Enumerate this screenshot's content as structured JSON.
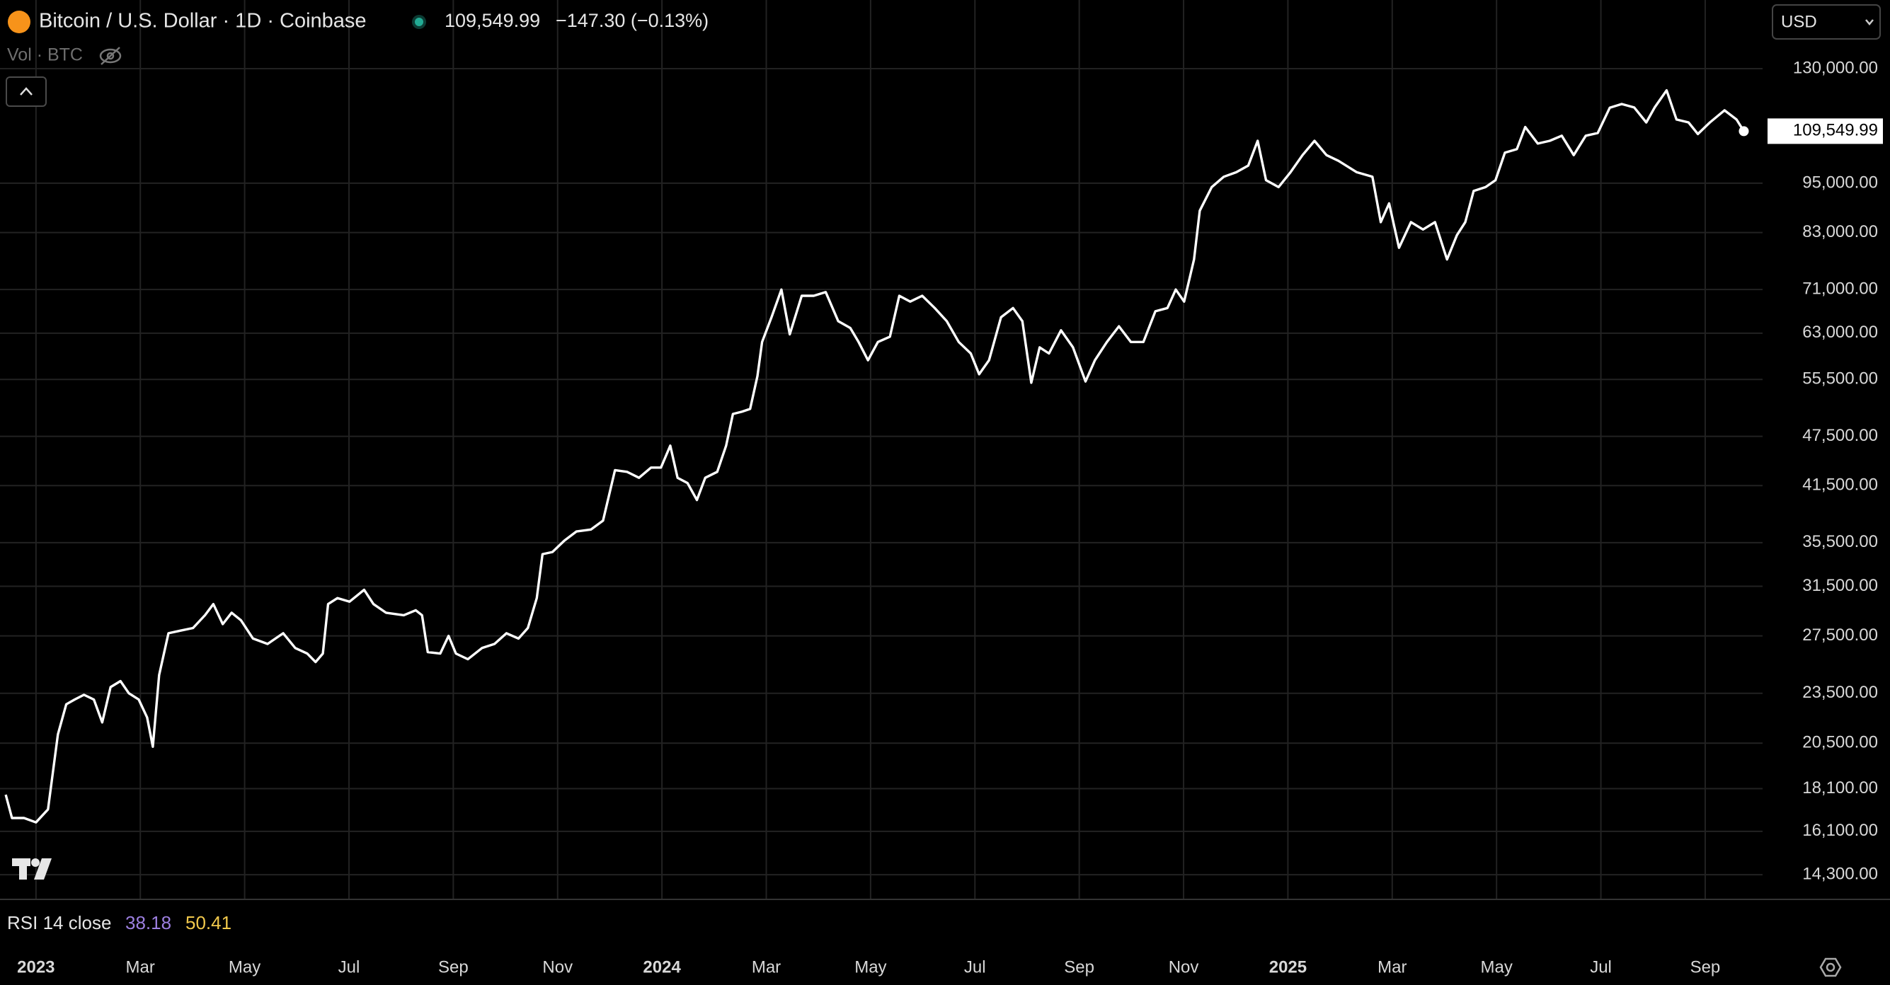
{
  "header": {
    "symbol": "Bitcoin / U.S. Dollar · 1D · Coinbase",
    "price": "109,549.99",
    "change": "−147.30 (−0.13%)",
    "volume": "Vol · BTC",
    "currency": "USD"
  },
  "rsi": {
    "label": "RSI 14 close",
    "values": [
      "38.18",
      "50.41"
    ]
  },
  "chart_data": {
    "type": "line",
    "log_scale": true,
    "grid": true,
    "xlim": [
      -0.69,
      33.1
    ],
    "xticks": [
      {
        "value": 0,
        "label": "2023"
      },
      {
        "value": 2,
        "label": "Mar"
      },
      {
        "value": 4,
        "label": "May"
      },
      {
        "value": 6,
        "label": "Jul"
      },
      {
        "value": 8,
        "label": "Sep"
      },
      {
        "value": 10,
        "label": "Nov"
      },
      {
        "value": 12,
        "label": "2024"
      },
      {
        "value": 14,
        "label": "Mar"
      },
      {
        "value": 16,
        "label": "May"
      },
      {
        "value": 18,
        "label": "Jul"
      },
      {
        "value": 20,
        "label": "Sep"
      },
      {
        "value": 22,
        "label": "Nov"
      },
      {
        "value": 24,
        "label": "2025"
      },
      {
        "value": 26,
        "label": "Mar"
      },
      {
        "value": 28,
        "label": "May"
      },
      {
        "value": 30,
        "label": "Jul"
      },
      {
        "value": 32,
        "label": "Sep"
      }
    ],
    "ylim": [
      13390,
      156900
    ],
    "yticks": [
      {
        "value": 130000,
        "label": "130,000.00"
      },
      {
        "value": 95000,
        "label": "95,000.00"
      },
      {
        "value": 83000,
        "label": "83,000.00"
      },
      {
        "value": 71000,
        "label": "71,000.00"
      },
      {
        "value": 63000,
        "label": "63,000.00"
      },
      {
        "value": 55500,
        "label": "55,500.00"
      },
      {
        "value": 47500,
        "label": "47,500.00"
      },
      {
        "value": 41500,
        "label": "41,500.00"
      },
      {
        "value": 35500,
        "label": "35,500.00"
      },
      {
        "value": 31500,
        "label": "31,500.00"
      },
      {
        "value": 27500,
        "label": "27,500.00"
      },
      {
        "value": 23500,
        "label": "23,500.00"
      },
      {
        "value": 20500,
        "label": "20,500.00"
      },
      {
        "value": 18100,
        "label": "18,100.00"
      },
      {
        "value": 16100,
        "label": "16,100.00"
      },
      {
        "value": 14300,
        "label": "14,300.00"
      }
    ],
    "x": [
      -0.58,
      -0.46,
      -0.23,
      0,
      0.23,
      0.42,
      0.58,
      0.74,
      0.92,
      1.11,
      1.27,
      1.43,
      1.62,
      1.78,
      1.97,
      2.13,
      2.24,
      2.36,
      2.54,
      2.77,
      3.01,
      3.24,
      3.4,
      3.58,
      3.75,
      3.93,
      4.16,
      4.44,
      4.74,
      4.97,
      5.2,
      5.36,
      5.5,
      5.6,
      5.78,
      6.01,
      6.29,
      6.47,
      6.71,
      7.05,
      7.28,
      7.4,
      7.51,
      7.75,
      7.91,
      8.05,
      8.28,
      8.55,
      8.79,
      9.02,
      9.25,
      9.43,
      9.6,
      9.71,
      9.9,
      10.13,
      10.36,
      10.64,
      10.87,
      11.1,
      11.33,
      11.56,
      11.79,
      11.98,
      12.16,
      12.3,
      12.49,
      12.67,
      12.83,
      13.06,
      13.23,
      13.36,
      13.53,
      13.69,
      13.83,
      13.92,
      14.1,
      14.29,
      14.45,
      14.68,
      14.91,
      15.14,
      15.38,
      15.61,
      15.77,
      15.95,
      16.14,
      16.37,
      16.55,
      16.76,
      16.99,
      17.23,
      17.46,
      17.69,
      17.92,
      18.08,
      18.27,
      18.5,
      18.73,
      18.91,
      19.08,
      19.24,
      19.42,
      19.65,
      19.88,
      20.12,
      20.3,
      20.53,
      20.76,
      20.99,
      21.23,
      21.46,
      21.69,
      21.85,
      22.01,
      22.2,
      22.31,
      22.54,
      22.77,
      23.01,
      23.24,
      23.42,
      23.58,
      23.82,
      24.05,
      24.28,
      24.51,
      24.74,
      24.97,
      25.32,
      25.62,
      25.78,
      25.94,
      26.13,
      26.36,
      26.59,
      26.82,
      27.05,
      27.24,
      27.4,
      27.56,
      27.79,
      27.98,
      28.16,
      28.39,
      28.55,
      28.79,
      29.02,
      29.25,
      29.48,
      29.71,
      29.94,
      30.17,
      30.4,
      30.64,
      30.87,
      31.03,
      31.26,
      31.45,
      31.68,
      31.86,
      32.09,
      32.37,
      32.6,
      32.74
    ],
    "series": [
      {
        "name": "BTCUSD",
        "color": "#ffffff",
        "values": [
          17800,
          16700,
          16700,
          16500,
          17100,
          21000,
          22800,
          23100,
          23400,
          23100,
          21700,
          23900,
          24300,
          23500,
          23100,
          22000,
          20300,
          24700,
          27700,
          27900,
          28100,
          29100,
          30000,
          28400,
          29300,
          28700,
          27300,
          26900,
          27700,
          26600,
          26200,
          25600,
          26200,
          30000,
          30500,
          30200,
          31200,
          30000,
          29300,
          29100,
          29500,
          29100,
          26300,
          26200,
          27500,
          26200,
          25800,
          26600,
          26900,
          27700,
          27300,
          28100,
          30500,
          34400,
          34600,
          35700,
          36600,
          36800,
          37700,
          43300,
          43100,
          42400,
          43600,
          43600,
          46300,
          42400,
          41800,
          39900,
          42400,
          43100,
          46300,
          50500,
          50800,
          51200,
          56000,
          61500,
          65800,
          71000,
          62800,
          69800,
          69800,
          70500,
          65100,
          63900,
          61500,
          58500,
          61500,
          62400,
          69800,
          68700,
          69800,
          67500,
          65100,
          61500,
          59600,
          56300,
          58500,
          65800,
          67500,
          65100,
          55000,
          60600,
          59600,
          63500,
          60600,
          55200,
          58500,
          61500,
          64200,
          61500,
          61500,
          66900,
          67500,
          71000,
          68700,
          77100,
          88100,
          94000,
          96700,
          97900,
          99700,
          106700,
          95800,
          94000,
          97900,
          102600,
          106700,
          102600,
          101000,
          97900,
          96700,
          85400,
          89900,
          79600,
          85400,
          83700,
          85400,
          77100,
          82400,
          85400,
          93000,
          94000,
          95800,
          103300,
          104300,
          110800,
          105900,
          106700,
          108200,
          102600,
          108200,
          109000,
          116800,
          118000,
          116900,
          112200,
          116900,
          122500,
          113100,
          112200,
          108700,
          112200,
          116000,
          113100,
          109549.99
        ]
      }
    ]
  }
}
